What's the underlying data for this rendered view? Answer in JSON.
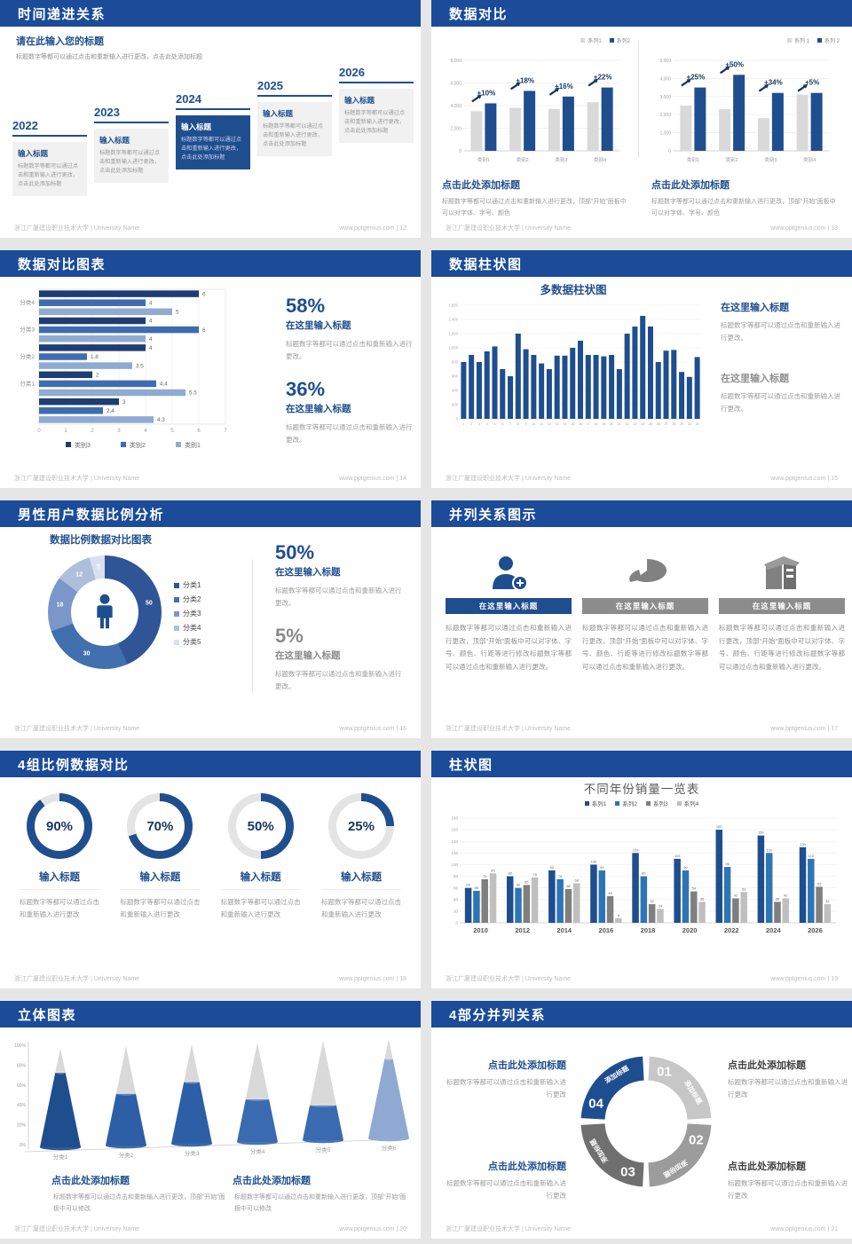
{
  "page": {
    "footer_left": "浙江广厦建设职业技术大学 | University Name",
    "footer_site": "www.pptgenius.com"
  },
  "colors": {
    "header": "#1b4b99",
    "accent": "#1f4e8f",
    "accent_dark": "#17365d",
    "mid_blue": "#2e75b6",
    "gray_bar": "#d9d9d9"
  },
  "slides": {
    "s1": {
      "title": "时间递进关系",
      "page_no": "12",
      "footer_right": "www.pptgenius.com | 12",
      "intro_title": "请在此输入您的标题",
      "intro_body": "标题数字等都可以通过点击和重新输入进行更改，点击此处添加标题",
      "item_title": "输入标题",
      "item_body": "标题数字等都可以通过点击和重新输入进行更改，点击此处添加标题",
      "years": [
        "2022",
        "2023",
        "2024",
        "2025",
        "2026"
      ],
      "highlight_index": 2
    },
    "s2": {
      "title": "数据对比",
      "page_no": "13",
      "footer_right": "www.pptgenius.com | 13",
      "caption_title": "点击此处添加标题",
      "caption_body": "标题数字等都可以通过点击和重新输入进行更改，顶部“开始”面板中可以对字体、字号、颜色",
      "chart_data": [
        {
          "type": "bar",
          "legend": [
            "系列1",
            "系列2"
          ],
          "categories": [
            "类别1",
            "类别2",
            "类别3",
            "类别4"
          ],
          "ymax": 8000,
          "yticks": [
            "8,000",
            "6,000",
            "4,000",
            "2,000",
            "0"
          ],
          "series1": [
            3500,
            3800,
            3700,
            4300
          ],
          "series2": [
            4200,
            5300,
            4800,
            5600
          ],
          "annotations": [
            "+10%",
            "+18%",
            "+16%",
            "+22%"
          ]
        },
        {
          "type": "bar",
          "legend": [
            "系列 1",
            "系列 2"
          ],
          "categories": [
            "类别1",
            "类别2",
            "类别3",
            "类别4"
          ],
          "ymax": 5000,
          "yticks": [
            "5,000",
            "4,000",
            "3,000",
            "2,000",
            "1,000",
            "0"
          ],
          "series1": [
            2500,
            2300,
            1800,
            3100
          ],
          "series2": [
            3500,
            4200,
            3200,
            3200
          ],
          "annotations": [
            "+25%",
            "+50%",
            "+34%",
            "+5%"
          ]
        }
      ]
    },
    "s3": {
      "title": "数据对比图表",
      "page_no": "14",
      "footer_right": "www.pptgenius.com | 14",
      "chart_data": {
        "type": "bar",
        "orientation": "horizontal",
        "groups": [
          "分类4",
          "分类3",
          "分类2",
          "分类1",
          ""
        ],
        "legend": [
          "类别3",
          "类别2",
          "类别1"
        ],
        "values": [
          [
            6,
            4,
            5
          ],
          [
            4,
            6,
            4
          ],
          [
            4,
            1.8,
            3.5
          ],
          [
            2,
            4.4,
            5.5
          ],
          [
            3,
            2.4,
            4.3
          ]
        ],
        "xmax": 7,
        "xticks": [
          "0",
          "1",
          "2",
          "3",
          "4",
          "5",
          "6",
          "7"
        ],
        "colors": [
          "#1f3d73",
          "#3f6cb1",
          "#8fabd1"
        ]
      },
      "stats": [
        {
          "value": "58%",
          "heading": "在这里输入标题",
          "body": "标题数字等都可以通过点击和重新输入进行更改。"
        },
        {
          "value": "36%",
          "heading": "在这里输入标题",
          "body": "标题数字等都可以通过点击和重新输入进行更改。"
        }
      ]
    },
    "s4": {
      "title": "数据柱状图",
      "page_no": "15",
      "footer_right": "www.pptgenius.com | 15",
      "chart_title": "多数据柱状图",
      "chart_data": {
        "type": "bar",
        "ymax": 1600,
        "yticks": [
          "1,600",
          "1,400",
          "1,200",
          "1,000",
          "800",
          "600",
          "400",
          "200",
          "0"
        ],
        "values": [
          800,
          900,
          800,
          950,
          1020,
          700,
          600,
          1200,
          980,
          900,
          780,
          700,
          890,
          890,
          1000,
          1100,
          900,
          900,
          880,
          900,
          700,
          1200,
          1300,
          1450,
          1300,
          800,
          960,
          970,
          660,
          590,
          870
        ]
      },
      "blocks": [
        {
          "heading": "在这里输入标题",
          "body": "标题数字等都可以通过点击和重新输入进行更改。"
        },
        {
          "heading": "在这里输入标题",
          "body": "标题数字等都可以通过点击和重新输入进行更改。"
        }
      ]
    },
    "s5": {
      "title": "男性用户数据比例分析",
      "page_no": "16",
      "footer_right": "www.pptgenius.com | 16",
      "chart_title": "数据比例数据对比图表",
      "chart_data": {
        "type": "pie",
        "values": [
          50,
          30,
          18,
          12,
          5
        ],
        "labels": [
          "50",
          "30",
          "18",
          "12",
          "5"
        ],
        "legend": [
          "分类1",
          "分类2",
          "分类3",
          "分类4",
          "分类5"
        ],
        "colors": [
          "#2f5597",
          "#4170ae",
          "#7b96c8",
          "#aebfdc",
          "#d9e0ef"
        ]
      },
      "stats": [
        {
          "value": "50%",
          "heading": "在这里输入标题",
          "body": "标题数字等都可以通过点击和重新输入进行更改。"
        },
        {
          "value": "5%",
          "heading": "在这里输入标题",
          "body": "标题数字等都可以通过点击和重新输入进行更改。"
        }
      ]
    },
    "s6": {
      "title": "并列关系图示",
      "page_no": "17",
      "footer_right": "www.pptgenius.com | 17",
      "item_title": "在这里输入标题",
      "item_body": "标题数字等都可以通过点击和重新输入进行更改，顶部“开始”面板中可以对字体、字号、颜色、行距等进行修改标题数字等都可以通过点击和重新输入进行更改。",
      "icons": [
        "person-add",
        "pie-chart",
        "building"
      ]
    },
    "s7": {
      "title": "4组比例数据对比",
      "page_no": "18",
      "footer_right": "www.pptgenius.com | 18",
      "item_title": "输入标题",
      "item_body": "标题数字等都可以通过点击和重新输入进行更改",
      "chart_data": {
        "type": "pie",
        "gauges": [
          90,
          70,
          50,
          25
        ],
        "labels": [
          "90%",
          "70%",
          "50%",
          "25%"
        ]
      }
    },
    "s8": {
      "title": "柱状图",
      "page_no": "19",
      "footer_right": "www.pptgenius.com | 19",
      "chart_title": "不同年份销量一览表",
      "chart_data": {
        "type": "bar",
        "legend": [
          "系列1",
          "系列2",
          "系列3",
          "系列4"
        ],
        "categories": [
          "2010",
          "2012",
          "2014",
          "2016",
          "2018",
          "2020",
          "2022",
          "2024",
          "2026"
        ],
        "series": [
          {
            "name": "系列1",
            "values": [
              60,
              80,
              90,
              100,
              120,
              110,
              160,
              150,
              130
            ]
          },
          {
            "name": "系列2",
            "values": [
              55,
              60,
              75,
              90,
              80,
              90,
              96,
              120,
              110
            ]
          },
          {
            "name": "系列3",
            "values": [
              75,
              65,
              58,
              46,
              32,
              54,
              42,
              36,
              62
            ]
          },
          {
            "name": "系列4",
            "values": [
              85,
              78,
              68,
              8,
              24,
              36,
              53,
              42,
              32
            ]
          }
        ],
        "ymax": 180,
        "ystep": 20,
        "colors": [
          "#1f4e8f",
          "#2e75b6",
          "#7f7f7f",
          "#bfbfbf"
        ]
      }
    },
    "s9": {
      "title": "立体图表",
      "page_no": "20",
      "footer_right": "www.pptgenius.com | 20",
      "chart_data": {
        "type": "bar",
        "style": "3d-cone",
        "categories": [
          "分类1",
          "分类2",
          "分类3",
          "分类4",
          "分类5",
          "分类6"
        ],
        "fill_pct": [
          75,
          52,
          62,
          43,
          35,
          80
        ],
        "yticks": [
          "100%",
          "80%",
          "60%",
          "40%",
          "20%",
          "0%"
        ],
        "colors": [
          "#1f4e8f",
          "#2c5fa5",
          "#2c5fa5",
          "#3a6ab0",
          "#3a6ab0",
          "#8fa9d2"
        ]
      },
      "caption_title": "点击此处添加标题",
      "caption_body": "标题数字等都可以通过点击和重新输入进行更改，顶部“开始”面板中可以修改"
    },
    "s10": {
      "title": "4部分并列关系",
      "page_no": "21",
      "footer_right": "www.pptgenius.com | 21",
      "segment_label": "添加标题",
      "numbers": [
        "01",
        "02",
        "03",
        "04"
      ],
      "segment_colors": [
        "#c7c7c7",
        "#9c9c9c",
        "#6f6f6f",
        "#1f4e8f"
      ],
      "block_title": "点击此处添加标题",
      "block_body": "标题数字等都可以通过点击和重新输入进行更改"
    }
  }
}
